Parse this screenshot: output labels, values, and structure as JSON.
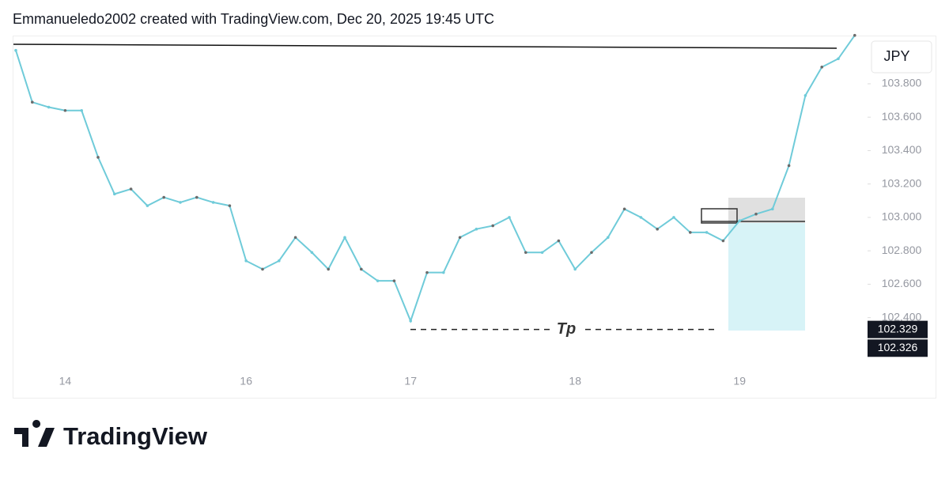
{
  "header": "Emmanueledo2002 created with TradingView.com, Dec 20, 2025 19:45 UTC",
  "brand": "TradingView",
  "chart_data": {
    "type": "line",
    "currency": "JPY",
    "annotation": "Tp",
    "categories": [
      null,
      null,
      null,
      "14",
      null,
      null,
      null,
      null,
      null,
      null,
      null,
      null,
      null,
      null,
      "16",
      null,
      null,
      null,
      null,
      null,
      null,
      null,
      null,
      null,
      "17",
      null,
      null,
      null,
      null,
      null,
      null,
      null,
      null,
      null,
      "18",
      null,
      null,
      null,
      null,
      null,
      null,
      null,
      null,
      null,
      "19",
      null,
      null,
      null,
      null,
      null,
      null,
      null
    ],
    "series": [
      {
        "color": "#6fcbd9",
        "values": [
          104.0,
          103.69,
          103.66,
          103.64,
          103.64,
          103.36,
          103.14,
          103.17,
          103.07,
          103.12,
          103.09,
          103.12,
          103.09,
          103.07,
          102.74,
          102.69,
          102.74,
          102.88,
          102.79,
          102.69,
          102.88,
          102.69,
          102.62,
          102.62,
          102.38,
          102.67,
          102.67,
          102.88,
          102.93,
          102.95,
          103.0,
          102.79,
          102.79,
          102.86,
          102.69,
          102.79,
          102.88,
          103.05,
          103.0,
          102.93,
          103.0,
          102.91,
          102.91,
          102.86,
          102.98,
          103.02,
          103.05,
          103.31,
          103.73,
          103.9,
          103.95,
          104.09
        ]
      }
    ],
    "ylim": [
      102.1,
      104.1
    ],
    "yticks": [
      {
        "value": 102.4,
        "label": "102.400"
      },
      {
        "value": 102.6,
        "label": "102.600"
      },
      {
        "value": 102.8,
        "label": "102.800"
      },
      {
        "value": 103.0,
        "label": "103.000"
      },
      {
        "value": 103.2,
        "label": "103.200"
      },
      {
        "value": 103.4,
        "label": "103.400"
      },
      {
        "value": 103.6,
        "label": "103.600"
      },
      {
        "value": 103.8,
        "label": "103.800"
      }
    ],
    "price_labels": [
      102.329,
      102.326
    ]
  }
}
